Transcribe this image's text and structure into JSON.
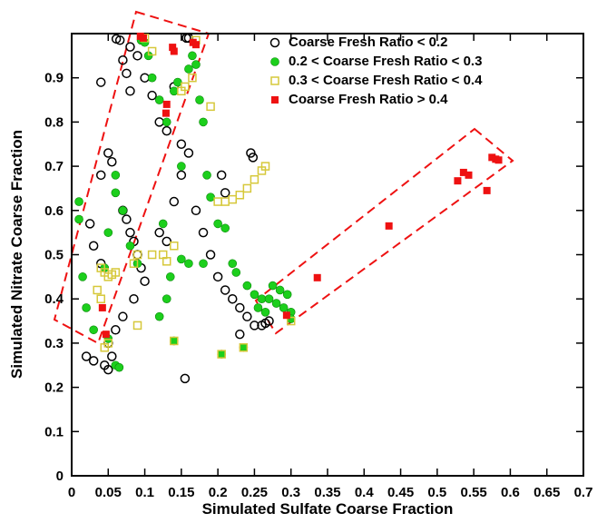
{
  "chart_data": {
    "type": "scatter",
    "x_label": "Simulated Sulfate Coarse Fraction",
    "y_label": "Simulated Nitrate Coarse Fraction",
    "xlim": [
      0,
      0.7
    ],
    "ylim": [
      0,
      1
    ],
    "xticks": [
      0,
      0.05,
      0.1,
      0.15,
      0.2,
      0.25,
      0.3,
      0.35,
      0.4,
      0.45,
      0.5,
      0.55,
      0.6,
      0.65,
      0.7
    ],
    "yticks": [
      0,
      0.1,
      0.2,
      0.3,
      0.4,
      0.5,
      0.6,
      0.7,
      0.8,
      0.9
    ],
    "legend": "upper right",
    "series": [
      {
        "name": "Coarse Fresh Ratio < 0.2",
        "color": "#000000",
        "marker": "circle-open",
        "x": [
          0.061,
          0.066,
          0.08,
          0.09,
          0.07,
          0.075,
          0.04,
          0.08,
          0.1,
          0.11,
          0.12,
          0.13,
          0.14,
          0.15,
          0.16,
          0.16,
          0.157,
          0.155,
          0.05,
          0.055,
          0.04,
          0.07,
          0.075,
          0.08,
          0.085,
          0.09,
          0.095,
          0.1,
          0.085,
          0.07,
          0.06,
          0.05,
          0.055,
          0.05,
          0.045,
          0.02,
          0.03,
          0.025,
          0.03,
          0.04,
          0.17,
          0.18,
          0.19,
          0.2,
          0.21,
          0.22,
          0.23,
          0.24,
          0.25,
          0.26,
          0.265,
          0.27,
          0.245,
          0.248,
          0.205,
          0.21,
          0.15,
          0.14,
          0.12,
          0.13,
          0.23
        ],
        "values": [
          0.988,
          0.985,
          0.97,
          0.95,
          0.94,
          0.91,
          0.89,
          0.87,
          0.9,
          0.86,
          0.8,
          0.78,
          0.88,
          0.75,
          0.73,
          0.99,
          0.99,
          0.22,
          0.73,
          0.71,
          0.68,
          0.6,
          0.58,
          0.55,
          0.53,
          0.5,
          0.47,
          0.44,
          0.4,
          0.36,
          0.33,
          0.3,
          0.27,
          0.24,
          0.25,
          0.27,
          0.26,
          0.57,
          0.52,
          0.48,
          0.6,
          0.55,
          0.5,
          0.45,
          0.42,
          0.4,
          0.38,
          0.36,
          0.34,
          0.34,
          0.345,
          0.35,
          0.73,
          0.72,
          0.68,
          0.64,
          0.68,
          0.62,
          0.55,
          0.53,
          0.32
        ]
      },
      {
        "name": "0.2 < Coarse Fresh Ratio < 0.3",
        "color": "#1ccf1c",
        "marker": "circle",
        "x": [
          0.01,
          0.01,
          0.015,
          0.02,
          0.03,
          0.05,
          0.06,
          0.065,
          0.045,
          0.05,
          0.06,
          0.06,
          0.07,
          0.08,
          0.09,
          0.095,
          0.1,
          0.105,
          0.11,
          0.12,
          0.13,
          0.14,
          0.145,
          0.15,
          0.16,
          0.165,
          0.17,
          0.175,
          0.18,
          0.185,
          0.19,
          0.15,
          0.16,
          0.14,
          0.205,
          0.235,
          0.22,
          0.225,
          0.24,
          0.25,
          0.26,
          0.27,
          0.28,
          0.29,
          0.3,
          0.3,
          0.295,
          0.285,
          0.275,
          0.265,
          0.255,
          0.2,
          0.21,
          0.125,
          0.135,
          0.13,
          0.12,
          0.18
        ],
        "values": [
          0.62,
          0.58,
          0.45,
          0.38,
          0.33,
          0.31,
          0.25,
          0.245,
          0.47,
          0.55,
          0.64,
          0.68,
          0.6,
          0.52,
          0.48,
          0.985,
          0.98,
          0.95,
          0.9,
          0.85,
          0.8,
          0.87,
          0.89,
          0.7,
          0.92,
          0.95,
          0.93,
          0.85,
          0.8,
          0.68,
          0.63,
          0.49,
          0.48,
          0.305,
          0.275,
          0.29,
          0.48,
          0.46,
          0.43,
          0.41,
          0.4,
          0.4,
          0.39,
          0.38,
          0.37,
          0.355,
          0.41,
          0.42,
          0.43,
          0.37,
          0.38,
          0.57,
          0.56,
          0.57,
          0.45,
          0.4,
          0.36,
          0.48
        ]
      },
      {
        "name": "0.3 < Coarse Fresh Ratio < 0.4",
        "color": "#d6c83a",
        "marker": "square-open",
        "x": [
          0.11,
          0.1,
          0.165,
          0.17,
          0.155,
          0.15,
          0.19,
          0.11,
          0.13,
          0.125,
          0.14,
          0.2,
          0.21,
          0.22,
          0.23,
          0.24,
          0.25,
          0.26,
          0.265,
          0.04,
          0.045,
          0.05,
          0.035,
          0.04,
          0.045,
          0.05,
          0.09,
          0.235,
          0.14,
          0.09,
          0.085,
          0.06,
          0.055,
          0.3,
          0.205
        ],
        "values": [
          0.96,
          0.99,
          0.9,
          0.985,
          0.88,
          0.87,
          0.835,
          0.5,
          0.485,
          0.5,
          0.52,
          0.62,
          0.62,
          0.625,
          0.635,
          0.65,
          0.67,
          0.69,
          0.7,
          0.47,
          0.46,
          0.45,
          0.42,
          0.4,
          0.29,
          0.3,
          0.34,
          0.29,
          0.305,
          0.5,
          0.48,
          0.46,
          0.455,
          0.35,
          0.275
        ]
      },
      {
        "name": "Coarse Fresh Ratio > 0.4",
        "color": "#ee1111",
        "marker": "square",
        "x": [
          0.094,
          0.098,
          0.138,
          0.14,
          0.166,
          0.17,
          0.13,
          0.129,
          0.042,
          0.047,
          0.294,
          0.336,
          0.434,
          0.528,
          0.536,
          0.543,
          0.568,
          0.575,
          0.58,
          0.584
        ],
        "values": [
          0.994,
          0.99,
          0.969,
          0.96,
          0.98,
          0.975,
          0.84,
          0.82,
          0.38,
          0.32,
          0.363,
          0.448,
          0.565,
          0.667,
          0.686,
          0.68,
          0.645,
          0.72,
          0.716,
          0.714
        ]
      }
    ]
  }
}
